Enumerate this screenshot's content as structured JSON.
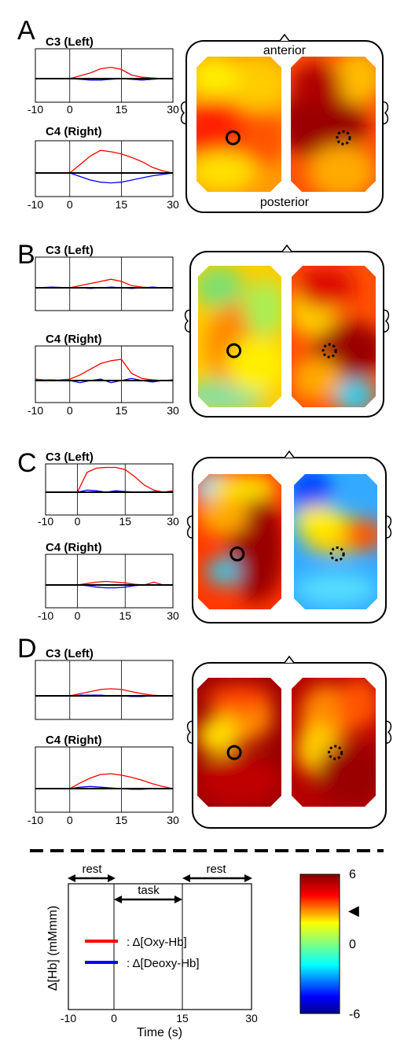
{
  "panels": [
    {
      "letter": "A",
      "top_channel": "C3 (Left)",
      "bottom_channel": "C4 (Right)",
      "head": {
        "top_label": "anterior",
        "bottom_label": "posterior"
      }
    },
    {
      "letter": "B",
      "top_channel": "C3 (Left)",
      "bottom_channel": "C4 (Right)"
    },
    {
      "letter": "C",
      "top_channel": "C3 (Left)",
      "bottom_channel": "C4 (Right)"
    },
    {
      "letter": "D",
      "top_channel": "C3 (Left)",
      "bottom_channel": "C4 (Right)"
    }
  ],
  "x_ticks": [
    "-10",
    "0",
    "15",
    "30"
  ],
  "legend": {
    "oxy_label": ": Δ[Oxy-Hb]",
    "deoxy_label": ": Δ[Deoxy-Hb]",
    "oxy_color": "#ff0000",
    "deoxy_color": "#0000ff",
    "rest_label_left": "rest",
    "task_label": "task",
    "rest_label_right": "rest",
    "ylabel": "Δ[Hb] (mMmm)",
    "xlabel": "Time (s)"
  },
  "colorbar": {
    "max_label": "6",
    "mid_label": "0",
    "min_label": "-6",
    "marker": "◀"
  },
  "chart_data": {
    "type": "line",
    "x_ticks": [
      -10,
      0,
      15,
      30
    ],
    "xlim": [
      -10,
      30
    ],
    "xlabel": "Time (s)",
    "ylabel": "Δ[Hb] (mMmm)",
    "series_colors": {
      "oxy": "#ff0000",
      "deoxy": "#0000ff"
    },
    "epochs": [
      {
        "label": "rest",
        "range": [
          -10,
          0
        ]
      },
      {
        "label": "task",
        "range": [
          0,
          15
        ]
      },
      {
        "label": "rest",
        "range": [
          15,
          30
        ]
      }
    ],
    "colorbar_range": [
      -6,
      6
    ],
    "colorbar_ticks": [
      6,
      0,
      -6
    ],
    "panels": [
      {
        "letter": "A",
        "charts": [
          {
            "channel": "C3 (Left)",
            "x": [
              -10,
              -5,
              0,
              3,
              6,
              9,
              12,
              15,
              18,
              21,
              24,
              27,
              30
            ],
            "oxy": [
              0,
              0,
              0,
              0.4,
              0.8,
              1.4,
              1.6,
              1.3,
              0.5,
              0.2,
              0.1,
              0,
              0
            ],
            "deoxy": [
              0,
              0,
              0,
              -0.1,
              -0.2,
              -0.2,
              -0.1,
              0,
              -0.1,
              -0.2,
              -0.1,
              0,
              0
            ]
          },
          {
            "channel": "C4 (Right)",
            "x": [
              -10,
              -5,
              0,
              3,
              6,
              9,
              12,
              15,
              18,
              21,
              24,
              27,
              30
            ],
            "oxy": [
              0,
              0,
              0,
              1.2,
              2.4,
              3.2,
              3.0,
              2.7,
              2.2,
              1.6,
              0.8,
              0.3,
              0
            ],
            "deoxy": [
              0,
              0,
              0,
              -0.5,
              -1.0,
              -1.3,
              -1.4,
              -1.3,
              -1.0,
              -0.7,
              -0.4,
              -0.2,
              0
            ]
          }
        ]
      },
      {
        "letter": "B",
        "charts": [
          {
            "channel": "C3 (Left)",
            "x": [
              -10,
              -5,
              0,
              3,
              6,
              9,
              12,
              15,
              18,
              21,
              24,
              27,
              30
            ],
            "oxy": [
              0,
              0,
              0,
              0.3,
              0.6,
              0.9,
              1.2,
              0.9,
              0.3,
              0.1,
              0,
              0,
              0
            ],
            "deoxy": [
              0,
              0.1,
              0,
              0,
              -0.1,
              0,
              0.1,
              0,
              -0.1,
              0,
              0.1,
              0,
              0
            ]
          },
          {
            "channel": "C4 (Right)",
            "x": [
              -10,
              -5,
              0,
              3,
              6,
              9,
              12,
              15,
              18,
              21,
              24,
              27,
              30
            ],
            "oxy": [
              0.2,
              0,
              0.2,
              0.8,
              1.6,
              2.4,
              2.8,
              3.0,
              1.0,
              0.3,
              0.1,
              0,
              0
            ],
            "deoxy": [
              0.1,
              0.1,
              0,
              -0.3,
              0,
              0.2,
              -0.3,
              0,
              0.3,
              0,
              -0.2,
              0,
              0.1
            ]
          }
        ]
      },
      {
        "letter": "C",
        "charts": [
          {
            "channel": "C3 (Left)",
            "x": [
              -10,
              -5,
              0,
              3,
              6,
              9,
              12,
              15,
              18,
              21,
              24,
              27,
              30
            ],
            "oxy": [
              0,
              0,
              0,
              2.8,
              3.4,
              3.5,
              3.5,
              3.2,
              2.2,
              1.0,
              0.3,
              0,
              0.2
            ],
            "deoxy": [
              0,
              0,
              0,
              0.3,
              0.2,
              0,
              0.2,
              0.1,
              0,
              0,
              0.1,
              0,
              0
            ]
          },
          {
            "channel": "C4 (Right)",
            "x": [
              -10,
              -5,
              0,
              3,
              6,
              9,
              12,
              15,
              18,
              21,
              24,
              27,
              30
            ],
            "oxy": [
              0,
              0,
              0,
              0.2,
              0.4,
              0.5,
              0.4,
              0.3,
              0.1,
              0,
              0.4,
              0,
              0
            ],
            "deoxy": [
              0,
              0,
              0,
              -0.1,
              -0.3,
              -0.4,
              -0.4,
              -0.3,
              -0.1,
              0,
              0,
              0,
              0
            ]
          }
        ]
      },
      {
        "letter": "D",
        "charts": [
          {
            "channel": "C3 (Left)",
            "x": [
              -10,
              -5,
              0,
              3,
              6,
              9,
              12,
              15,
              18,
              21,
              24,
              27,
              30
            ],
            "oxy": [
              0,
              0,
              0,
              0.3,
              0.6,
              0.9,
              1.0,
              0.9,
              0.6,
              0.3,
              0.1,
              0,
              0
            ],
            "deoxy": [
              0,
              0,
              0,
              0.1,
              0.1,
              0.1,
              0,
              0,
              -0.1,
              -0.1,
              0,
              0,
              0
            ]
          },
          {
            "channel": "C4 (Right)",
            "x": [
              -10,
              -5,
              0,
              3,
              6,
              9,
              12,
              15,
              18,
              21,
              24,
              27,
              30
            ],
            "oxy": [
              0,
              0,
              0,
              0.8,
              1.5,
              2.0,
              2.1,
              1.9,
              1.6,
              1.2,
              0.7,
              0.3,
              0
            ],
            "deoxy": [
              0,
              0,
              0,
              0.2,
              0.3,
              0.2,
              0.1,
              0,
              -0.1,
              -0.1,
              0,
              0,
              0
            ]
          }
        ]
      }
    ]
  },
  "topomaps": [
    {
      "letter": "A",
      "left_base": "#ff9a00",
      "left_blobs": [
        [
          "#ff2200",
          0.25,
          0.55,
          0.5,
          0.22
        ],
        [
          "#ffcc00",
          0.7,
          0.2,
          0.4,
          0.2
        ],
        [
          "#ffe000",
          0.3,
          0.85,
          0.4,
          0.15
        ],
        [
          "#ff5500",
          0.8,
          0.6,
          0.3,
          0.2
        ],
        [
          "#ffee00",
          0.2,
          0.15,
          0.3,
          0.15
        ]
      ],
      "right_base": "#ff5200",
      "right_blobs": [
        [
          "#9a0000",
          0.35,
          0.5,
          0.55,
          0.25
        ],
        [
          "#ffbb00",
          0.8,
          0.15,
          0.3,
          0.2
        ],
        [
          "#ffaa00",
          0.6,
          0.85,
          0.4,
          0.2
        ],
        [
          "#b00000",
          0.3,
          0.2,
          0.3,
          0.15
        ]
      ],
      "left_marker": [
        0.43,
        0.6
      ],
      "right_marker": [
        0.62,
        0.6
      ]
    },
    {
      "letter": "B",
      "left_base": "#ffcc00",
      "left_blobs": [
        [
          "#7fe070",
          0.25,
          0.15,
          0.3,
          0.15
        ],
        [
          "#88e0a0",
          0.3,
          0.92,
          0.5,
          0.12
        ],
        [
          "#ff8800",
          0.5,
          0.55,
          0.4,
          0.3
        ],
        [
          "#aaee55",
          0.8,
          0.3,
          0.25,
          0.2
        ],
        [
          "#ffee00",
          0.7,
          0.7,
          0.35,
          0.2
        ]
      ],
      "right_base": "#ff5000",
      "right_blobs": [
        [
          "#9a0000",
          0.7,
          0.6,
          0.45,
          0.2
        ],
        [
          "#ffcc00",
          0.25,
          0.3,
          0.3,
          0.2
        ],
        [
          "#33ccee",
          0.75,
          0.92,
          0.25,
          0.12
        ],
        [
          "#dd1100",
          0.4,
          0.15,
          0.35,
          0.15
        ],
        [
          "#ffaa00",
          0.3,
          0.8,
          0.3,
          0.15
        ]
      ],
      "left_marker": [
        0.43,
        0.6
      ],
      "right_marker": [
        0.45,
        0.6
      ]
    },
    {
      "letter": "C",
      "left_base": "#ff3800",
      "left_blobs": [
        [
          "#9a0000",
          0.7,
          0.55,
          0.35,
          0.4
        ],
        [
          "#88e0ff",
          0.2,
          0.1,
          0.25,
          0.12
        ],
        [
          "#33c8e8",
          0.3,
          0.72,
          0.2,
          0.1
        ],
        [
          "#ffaa00",
          0.3,
          0.3,
          0.3,
          0.15
        ],
        [
          "#ffe000",
          0.55,
          0.1,
          0.4,
          0.1
        ]
      ],
      "right_base": "#33aaff",
      "right_blobs": [
        [
          "#ffcc00",
          0.5,
          0.45,
          0.4,
          0.15
        ],
        [
          "#ff5500",
          0.85,
          0.45,
          0.25,
          0.12
        ],
        [
          "#0044ff",
          0.2,
          0.15,
          0.25,
          0.2
        ],
        [
          "#55ddff",
          0.5,
          0.85,
          0.5,
          0.12
        ],
        [
          "#ffee00",
          0.3,
          0.35,
          0.3,
          0.12
        ]
      ],
      "left_marker": [
        0.47,
        0.59
      ],
      "right_marker": [
        0.52,
        0.59
      ]
    },
    {
      "letter": "D",
      "left_base": "#9a0000",
      "left_blobs": [
        [
          "#ff8800",
          0.55,
          0.3,
          0.35,
          0.2
        ],
        [
          "#ffdd00",
          0.25,
          0.45,
          0.25,
          0.15
        ],
        [
          "#ff4400",
          0.5,
          0.15,
          0.4,
          0.1
        ],
        [
          "#c00000",
          0.5,
          0.8,
          0.5,
          0.2
        ]
      ],
      "right_base": "#b40000",
      "right_blobs": [
        [
          "#ff8800",
          0.4,
          0.3,
          0.3,
          0.25
        ],
        [
          "#ffcc00",
          0.3,
          0.55,
          0.25,
          0.2
        ],
        [
          "#ff5500",
          0.8,
          0.2,
          0.25,
          0.2
        ],
        [
          "#9a0000",
          0.7,
          0.75,
          0.4,
          0.25
        ]
      ],
      "left_marker": [
        0.44,
        0.58
      ],
      "right_marker": [
        0.52,
        0.58
      ]
    }
  ]
}
